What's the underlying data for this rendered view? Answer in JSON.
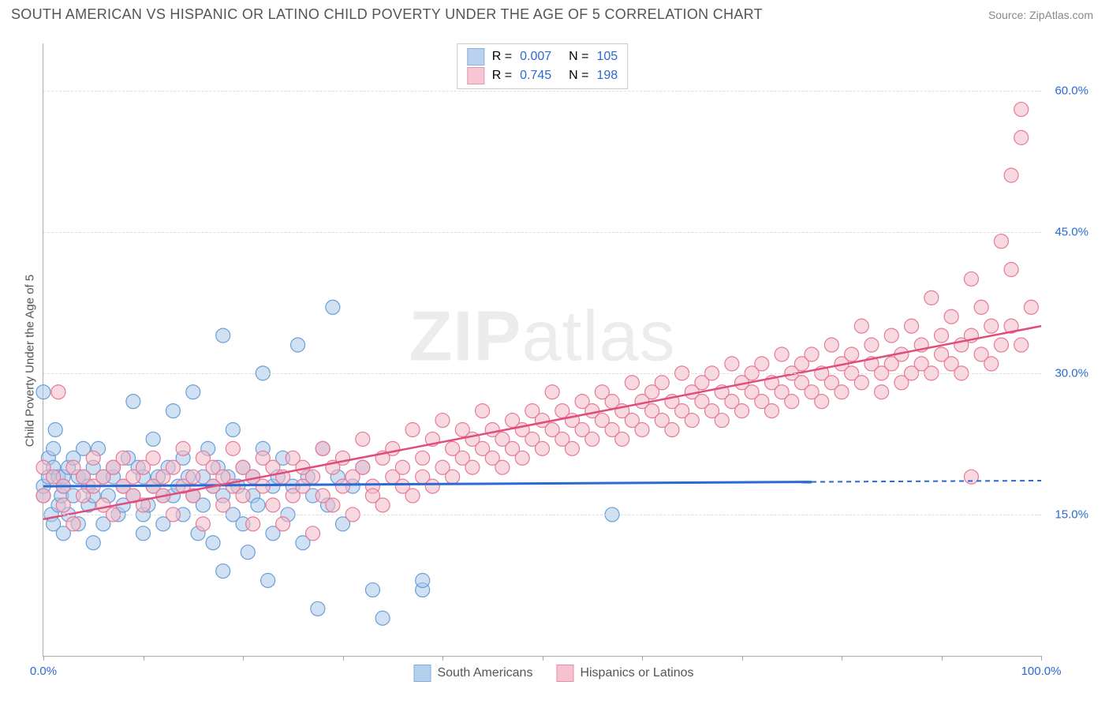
{
  "header": {
    "title": "SOUTH AMERICAN VS HISPANIC OR LATINO CHILD POVERTY UNDER THE AGE OF 5 CORRELATION CHART",
    "source_prefix": "Source: ",
    "source_name": "ZipAtlas.com"
  },
  "chart": {
    "type": "scatter",
    "y_axis_label": "Child Poverty Under the Age of 5",
    "watermark": "ZIPatlas",
    "xlim": [
      0,
      100
    ],
    "ylim": [
      0,
      65
    ],
    "x_ticks": [
      0,
      10,
      20,
      30,
      40,
      50,
      60,
      70,
      80,
      90,
      100
    ],
    "x_tick_labels": {
      "0": "0.0%",
      "100": "100.0%"
    },
    "y_ticks": [
      15,
      30,
      45,
      60
    ],
    "y_tick_labels": {
      "15": "15.0%",
      "30": "30.0%",
      "45": "45.0%",
      "60": "60.0%"
    },
    "background_color": "#ffffff",
    "grid_color": "#dddddd",
    "axis_color": "#aaaaaa",
    "tick_label_color_x": "#2b6ad0",
    "tick_label_color_y": "#2b6ad0",
    "marker_radius": 9,
    "marker_stroke_width": 1.2,
    "series": [
      {
        "id": "south_americans",
        "label": "South Americans",
        "fill": "#a9c8ea",
        "stroke": "#6b9fd6",
        "fill_opacity": 0.55,
        "R": "0.007",
        "N": "105",
        "trend": {
          "y_start": 18.0,
          "y_end": 18.6,
          "solid_x_end": 77,
          "color": "#2b6ad0",
          "width": 3,
          "dash": "6,5"
        },
        "points": [
          [
            0,
            17
          ],
          [
            0,
            28
          ],
          [
            0,
            18
          ],
          [
            0.5,
            19
          ],
          [
            0.5,
            21
          ],
          [
            0.8,
            15
          ],
          [
            1,
            14
          ],
          [
            1,
            20
          ],
          [
            1,
            22
          ],
          [
            1.2,
            24
          ],
          [
            1.5,
            16
          ],
          [
            1.5,
            19
          ],
          [
            1.8,
            17
          ],
          [
            2,
            18
          ],
          [
            2,
            13
          ],
          [
            2,
            19
          ],
          [
            2.5,
            20
          ],
          [
            2.5,
            15
          ],
          [
            3,
            17
          ],
          [
            3,
            21
          ],
          [
            3.5,
            19
          ],
          [
            3.5,
            14
          ],
          [
            4,
            19
          ],
          [
            4,
            22
          ],
          [
            4.5,
            16
          ],
          [
            4.5,
            18
          ],
          [
            5,
            17
          ],
          [
            5,
            20
          ],
          [
            5,
            12
          ],
          [
            5.5,
            22
          ],
          [
            6,
            19
          ],
          [
            6,
            14
          ],
          [
            6.5,
            17
          ],
          [
            7,
            19
          ],
          [
            7,
            20
          ],
          [
            7.5,
            15
          ],
          [
            8,
            18
          ],
          [
            8,
            16
          ],
          [
            8.5,
            21
          ],
          [
            9,
            17
          ],
          [
            9,
            27
          ],
          [
            9.5,
            20
          ],
          [
            10,
            19
          ],
          [
            10,
            15
          ],
          [
            10,
            13
          ],
          [
            10.5,
            16
          ],
          [
            11,
            18
          ],
          [
            11,
            23
          ],
          [
            11.5,
            19
          ],
          [
            12,
            14
          ],
          [
            12,
            17
          ],
          [
            12.5,
            20
          ],
          [
            13,
            26
          ],
          [
            13,
            17
          ],
          [
            13.5,
            18
          ],
          [
            14,
            21
          ],
          [
            14,
            15
          ],
          [
            14.5,
            19
          ],
          [
            15,
            17
          ],
          [
            15,
            28
          ],
          [
            15.5,
            13
          ],
          [
            16,
            19
          ],
          [
            16,
            16
          ],
          [
            16.5,
            22
          ],
          [
            17,
            18
          ],
          [
            17,
            12
          ],
          [
            17.5,
            20
          ],
          [
            18,
            34
          ],
          [
            18,
            17
          ],
          [
            18,
            9
          ],
          [
            18.5,
            19
          ],
          [
            19,
            15
          ],
          [
            19,
            24
          ],
          [
            19.5,
            18
          ],
          [
            20,
            20
          ],
          [
            20,
            14
          ],
          [
            20.5,
            11
          ],
          [
            21,
            17
          ],
          [
            21,
            19
          ],
          [
            21.5,
            16
          ],
          [
            22,
            22
          ],
          [
            22,
            30
          ],
          [
            22.5,
            8
          ],
          [
            23,
            18
          ],
          [
            23,
            13
          ],
          [
            23.5,
            19
          ],
          [
            24,
            21
          ],
          [
            24.5,
            15
          ],
          [
            25,
            18
          ],
          [
            25.5,
            33
          ],
          [
            26,
            12
          ],
          [
            26.5,
            19
          ],
          [
            27,
            17
          ],
          [
            27.5,
            5
          ],
          [
            28,
            22
          ],
          [
            28.5,
            16
          ],
          [
            29,
            37
          ],
          [
            29.5,
            19
          ],
          [
            30,
            14
          ],
          [
            31,
            18
          ],
          [
            32,
            20
          ],
          [
            33,
            7
          ],
          [
            34,
            4
          ],
          [
            38,
            7
          ],
          [
            38,
            8
          ],
          [
            57,
            15
          ]
        ]
      },
      {
        "id": "hispanics_or_latinos",
        "label": "Hispanics or Latinos",
        "fill": "#f4b9c7",
        "stroke": "#e67a9a",
        "fill_opacity": 0.55,
        "R": "0.745",
        "N": "198",
        "trend": {
          "y_start": 14.5,
          "y_end": 35.0,
          "solid_x_end": 100,
          "color": "#e04d7d",
          "width": 2.5,
          "dash": null
        },
        "points": [
          [
            0,
            20
          ],
          [
            0,
            17
          ],
          [
            1,
            19
          ],
          [
            1.5,
            28
          ],
          [
            2,
            18
          ],
          [
            2,
            16
          ],
          [
            3,
            20
          ],
          [
            3,
            14
          ],
          [
            4,
            19
          ],
          [
            4,
            17
          ],
          [
            5,
            21
          ],
          [
            5,
            18
          ],
          [
            6,
            16
          ],
          [
            6,
            19
          ],
          [
            7,
            20
          ],
          [
            7,
            15
          ],
          [
            8,
            18
          ],
          [
            8,
            21
          ],
          [
            9,
            19
          ],
          [
            9,
            17
          ],
          [
            10,
            20
          ],
          [
            10,
            16
          ],
          [
            11,
            18
          ],
          [
            11,
            21
          ],
          [
            12,
            19
          ],
          [
            12,
            17
          ],
          [
            13,
            20
          ],
          [
            13,
            15
          ],
          [
            14,
            18
          ],
          [
            14,
            22
          ],
          [
            15,
            19
          ],
          [
            15,
            17
          ],
          [
            16,
            21
          ],
          [
            16,
            14
          ],
          [
            17,
            18
          ],
          [
            17,
            20
          ],
          [
            18,
            19
          ],
          [
            18,
            16
          ],
          [
            19,
            22
          ],
          [
            19,
            18
          ],
          [
            20,
            20
          ],
          [
            20,
            17
          ],
          [
            21,
            14
          ],
          [
            21,
            19
          ],
          [
            22,
            21
          ],
          [
            22,
            18
          ],
          [
            23,
            16
          ],
          [
            23,
            20
          ],
          [
            24,
            19
          ],
          [
            24,
            14
          ],
          [
            25,
            17
          ],
          [
            25,
            21
          ],
          [
            26,
            20
          ],
          [
            26,
            18
          ],
          [
            27,
            13
          ],
          [
            27,
            19
          ],
          [
            28,
            22
          ],
          [
            28,
            17
          ],
          [
            29,
            20
          ],
          [
            29,
            16
          ],
          [
            30,
            18
          ],
          [
            30,
            21
          ],
          [
            31,
            19
          ],
          [
            31,
            15
          ],
          [
            32,
            23
          ],
          [
            32,
            20
          ],
          [
            33,
            18
          ],
          [
            33,
            17
          ],
          [
            34,
            21
          ],
          [
            34,
            16
          ],
          [
            35,
            19
          ],
          [
            35,
            22
          ],
          [
            36,
            18
          ],
          [
            36,
            20
          ],
          [
            37,
            17
          ],
          [
            37,
            24
          ],
          [
            38,
            21
          ],
          [
            38,
            19
          ],
          [
            39,
            23
          ],
          [
            39,
            18
          ],
          [
            40,
            25
          ],
          [
            40,
            20
          ],
          [
            41,
            22
          ],
          [
            41,
            19
          ],
          [
            42,
            24
          ],
          [
            42,
            21
          ],
          [
            43,
            20
          ],
          [
            43,
            23
          ],
          [
            44,
            26
          ],
          [
            44,
            22
          ],
          [
            45,
            21
          ],
          [
            45,
            24
          ],
          [
            46,
            23
          ],
          [
            46,
            20
          ],
          [
            47,
            25
          ],
          [
            47,
            22
          ],
          [
            48,
            24
          ],
          [
            48,
            21
          ],
          [
            49,
            26
          ],
          [
            49,
            23
          ],
          [
            50,
            25
          ],
          [
            50,
            22
          ],
          [
            51,
            28
          ],
          [
            51,
            24
          ],
          [
            52,
            23
          ],
          [
            52,
            26
          ],
          [
            53,
            25
          ],
          [
            53,
            22
          ],
          [
            54,
            27
          ],
          [
            54,
            24
          ],
          [
            55,
            26
          ],
          [
            55,
            23
          ],
          [
            56,
            28
          ],
          [
            56,
            25
          ],
          [
            57,
            24
          ],
          [
            57,
            27
          ],
          [
            58,
            26
          ],
          [
            58,
            23
          ],
          [
            59,
            29
          ],
          [
            59,
            25
          ],
          [
            60,
            27
          ],
          [
            60,
            24
          ],
          [
            61,
            28
          ],
          [
            61,
            26
          ],
          [
            62,
            25
          ],
          [
            62,
            29
          ],
          [
            63,
            27
          ],
          [
            63,
            24
          ],
          [
            64,
            30
          ],
          [
            64,
            26
          ],
          [
            65,
            28
          ],
          [
            65,
            25
          ],
          [
            66,
            29
          ],
          [
            66,
            27
          ],
          [
            67,
            26
          ],
          [
            67,
            30
          ],
          [
            68,
            28
          ],
          [
            68,
            25
          ],
          [
            69,
            31
          ],
          [
            69,
            27
          ],
          [
            70,
            29
          ],
          [
            70,
            26
          ],
          [
            71,
            30
          ],
          [
            71,
            28
          ],
          [
            72,
            27
          ],
          [
            72,
            31
          ],
          [
            73,
            29
          ],
          [
            73,
            26
          ],
          [
            74,
            32
          ],
          [
            74,
            28
          ],
          [
            75,
            30
          ],
          [
            75,
            27
          ],
          [
            76,
            31
          ],
          [
            76,
            29
          ],
          [
            77,
            28
          ],
          [
            77,
            32
          ],
          [
            78,
            30
          ],
          [
            78,
            27
          ],
          [
            79,
            33
          ],
          [
            79,
            29
          ],
          [
            80,
            31
          ],
          [
            80,
            28
          ],
          [
            81,
            32
          ],
          [
            81,
            30
          ],
          [
            82,
            35
          ],
          [
            82,
            29
          ],
          [
            83,
            31
          ],
          [
            83,
            33
          ],
          [
            84,
            30
          ],
          [
            84,
            28
          ],
          [
            85,
            34
          ],
          [
            85,
            31
          ],
          [
            86,
            32
          ],
          [
            86,
            29
          ],
          [
            87,
            30
          ],
          [
            87,
            35
          ],
          [
            88,
            33
          ],
          [
            88,
            31
          ],
          [
            89,
            38
          ],
          [
            89,
            30
          ],
          [
            90,
            34
          ],
          [
            90,
            32
          ],
          [
            91,
            31
          ],
          [
            91,
            36
          ],
          [
            92,
            33
          ],
          [
            92,
            30
          ],
          [
            93,
            40
          ],
          [
            93,
            34
          ],
          [
            93,
            19
          ],
          [
            94,
            32
          ],
          [
            94,
            37
          ],
          [
            95,
            35
          ],
          [
            95,
            31
          ],
          [
            96,
            44
          ],
          [
            96,
            33
          ],
          [
            97,
            41
          ],
          [
            97,
            35
          ],
          [
            97,
            51
          ],
          [
            98,
            55
          ],
          [
            98,
            58
          ],
          [
            98,
            33
          ],
          [
            99,
            37
          ]
        ]
      }
    ],
    "stats_box": {
      "r_label": "R =",
      "n_label": "N ="
    },
    "bottom_legend": true
  }
}
